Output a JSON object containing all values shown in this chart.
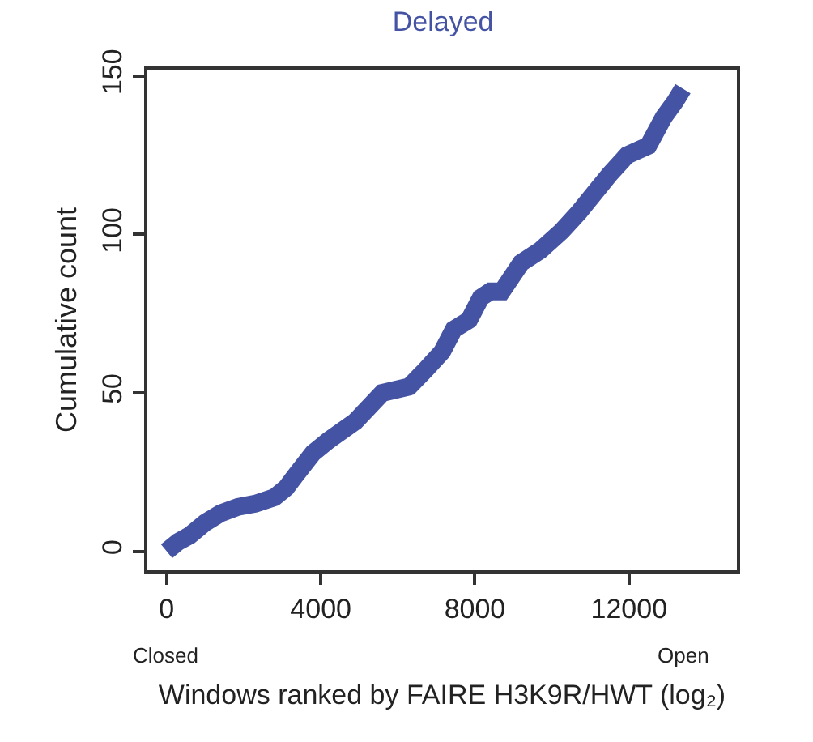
{
  "chart_data": {
    "type": "line",
    "title": "Delayed",
    "xlabel": "Windows ranked by FAIRE H3K9R/HWT (log₂)",
    "ylabel": "Cumulative count",
    "x": [
      0,
      300,
      600,
      1000,
      1400,
      1850,
      2300,
      2800,
      3100,
      3350,
      3800,
      4200,
      4900,
      5600,
      6300,
      6700,
      7150,
      7450,
      7850,
      8150,
      8400,
      8700,
      9200,
      9700,
      10250,
      10700,
      11100,
      11500,
      11950,
      12500,
      12900,
      13200,
      13400
    ],
    "series": [
      {
        "color": "#4453a3",
        "values": [
          0,
          3,
          5,
          9,
          12,
          14,
          15,
          17,
          20,
          24,
          31,
          35,
          41,
          50,
          52,
          57,
          63,
          70,
          73,
          80,
          82,
          82,
          91,
          95,
          101,
          107,
          113,
          119,
          125,
          128,
          137,
          142,
          146
        ]
      }
    ],
    "marker": "none",
    "line_style": "solid",
    "xlim": [
      -500,
      14800
    ],
    "ylim": [
      -6,
      152
    ],
    "xticks": [
      0,
      4000,
      8000,
      12000
    ],
    "yticks": [
      0,
      50,
      100,
      150
    ],
    "grid": false,
    "legend": false,
    "annotations": [
      "Closed",
      "Open"
    ]
  }
}
